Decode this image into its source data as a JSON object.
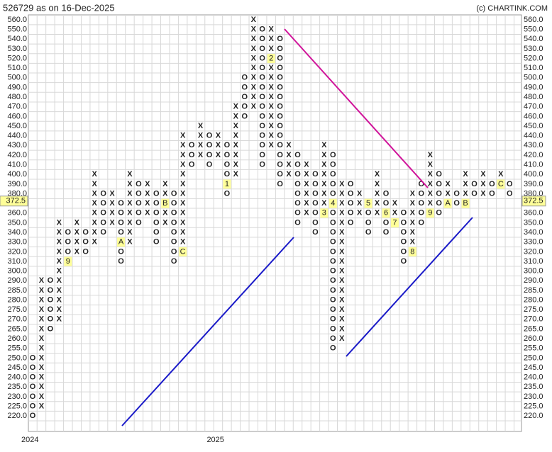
{
  "chart_data": {
    "type": "point-and-figure",
    "title": "526729 as on 16-Dec-2025",
    "credit": "(c) CHARTINK.COM",
    "x_color": "#2e8b2e",
    "o_color": "#e03030",
    "grid": true,
    "current_price": {
      "value": 372.5,
      "label": "372.5"
    },
    "yticks": [
      {
        "value": 560,
        "label": "560.0"
      },
      {
        "value": 550,
        "label": "550.0"
      },
      {
        "value": 540,
        "label": "540.0"
      },
      {
        "value": 530,
        "label": "530.0"
      },
      {
        "value": 520,
        "label": "520.0"
      },
      {
        "value": 510,
        "label": "510.0"
      },
      {
        "value": 500,
        "label": "500.0"
      },
      {
        "value": 490,
        "label": "490.0"
      },
      {
        "value": 480,
        "label": "480.0"
      },
      {
        "value": 470,
        "label": "470.0"
      },
      {
        "value": 460,
        "label": "460.0"
      },
      {
        "value": 450,
        "label": "450.0"
      },
      {
        "value": 440,
        "label": "440.0"
      },
      {
        "value": 430,
        "label": "430.0"
      },
      {
        "value": 420,
        "label": "420.0"
      },
      {
        "value": 410,
        "label": "410.0"
      },
      {
        "value": 400,
        "label": "400.0"
      },
      {
        "value": 390,
        "label": "390.0"
      },
      {
        "value": 380,
        "label": "380.0"
      },
      {
        "value": 370,
        "label": "370.0"
      },
      {
        "value": 360,
        "label": "360.0"
      },
      {
        "value": 350,
        "label": "350.0"
      },
      {
        "value": 340,
        "label": "340.0"
      },
      {
        "value": 330,
        "label": "330.0"
      },
      {
        "value": 320,
        "label": "320.0"
      },
      {
        "value": 310,
        "label": "310.0"
      },
      {
        "value": 300,
        "label": "300.0"
      },
      {
        "value": 290,
        "label": "290.0"
      },
      {
        "value": 285,
        "label": "285.0"
      },
      {
        "value": 280,
        "label": "280.0"
      },
      {
        "value": 275,
        "label": "275.0"
      },
      {
        "value": 270,
        "label": "270.0"
      },
      {
        "value": 265,
        "label": "265.0"
      },
      {
        "value": 260,
        "label": "260.0"
      },
      {
        "value": 255,
        "label": "255.0"
      },
      {
        "value": 250,
        "label": "250.0"
      },
      {
        "value": 245,
        "label": "245.0"
      },
      {
        "value": 240,
        "label": "240.0"
      },
      {
        "value": 235,
        "label": "235.0"
      },
      {
        "value": 230,
        "label": "230.0"
      },
      {
        "value": 225,
        "label": "225.0"
      },
      {
        "value": 220,
        "label": "220.0"
      }
    ],
    "columns": [
      {
        "type": "O",
        "low": 220,
        "high": 250,
        "year": "2024"
      },
      {
        "type": "X",
        "low": 225,
        "high": 295
      },
      {
        "type": "O",
        "low": 265,
        "high": 290
      },
      {
        "type": "X",
        "low": 270,
        "high": 350
      },
      {
        "type": "O",
        "low": 310,
        "high": 340,
        "markers": [
          {
            "price": 310,
            "label": "9"
          }
        ]
      },
      {
        "type": "X",
        "low": 320,
        "high": 350
      },
      {
        "type": "O",
        "low": 320,
        "high": 340
      },
      {
        "type": "X",
        "low": 330,
        "high": 400
      },
      {
        "type": "O",
        "low": 340,
        "high": 380
      },
      {
        "type": "X",
        "low": 350,
        "high": 380
      },
      {
        "type": "O",
        "low": 310,
        "high": 370,
        "markers": [
          {
            "price": 330,
            "label": "A"
          }
        ]
      },
      {
        "type": "X",
        "low": 330,
        "high": 400
      },
      {
        "type": "O",
        "low": 350,
        "high": 390
      },
      {
        "type": "X",
        "low": 360,
        "high": 390
      },
      {
        "type": "O",
        "low": 330,
        "high": 380
      },
      {
        "type": "X",
        "low": 350,
        "high": 390,
        "markers": [
          {
            "price": 370,
            "label": "B"
          }
        ]
      },
      {
        "type": "O",
        "low": 310,
        "high": 380
      },
      {
        "type": "X",
        "low": 320,
        "high": 440,
        "markers": [
          {
            "price": 320,
            "label": "C"
          }
        ]
      },
      {
        "type": "O",
        "low": 410,
        "high": 430
      },
      {
        "type": "X",
        "low": 420,
        "high": 450
      },
      {
        "type": "O",
        "low": 410,
        "high": 440
      },
      {
        "type": "X",
        "low": 420,
        "high": 440,
        "year": "2025"
      },
      {
        "type": "O",
        "low": 380,
        "high": 430,
        "markers": [
          {
            "price": 390,
            "label": "1"
          }
        ]
      },
      {
        "type": "X",
        "low": 400,
        "high": 470
      },
      {
        "type": "O",
        "low": 460,
        "high": 500
      },
      {
        "type": "X",
        "low": 470,
        "high": 560
      },
      {
        "type": "O",
        "low": 410,
        "high": 550
      },
      {
        "type": "X",
        "low": 430,
        "high": 550,
        "markers": [
          {
            "price": 520,
            "label": "2"
          }
        ]
      },
      {
        "type": "O",
        "low": 390,
        "high": 540
      },
      {
        "type": "X",
        "low": 400,
        "high": 430
      },
      {
        "type": "O",
        "low": 350,
        "high": 420
      },
      {
        "type": "X",
        "low": 360,
        "high": 410
      },
      {
        "type": "O",
        "low": 340,
        "high": 400
      },
      {
        "type": "X",
        "low": 360,
        "high": 430,
        "markers": [
          {
            "price": 360,
            "label": "3"
          }
        ]
      },
      {
        "type": "O",
        "low": 255,
        "high": 420,
        "markers": [
          {
            "price": 370,
            "label": "4"
          }
        ]
      },
      {
        "type": "X",
        "low": 260,
        "high": 390
      },
      {
        "type": "O",
        "low": 350,
        "high": 390
      },
      {
        "type": "X",
        "low": 360,
        "high": 380
      },
      {
        "type": "O",
        "low": 340,
        "high": 370,
        "markers": [
          {
            "price": 370,
            "label": "5"
          }
        ]
      },
      {
        "type": "X",
        "low": 360,
        "high": 400
      },
      {
        "type": "O",
        "low": 340,
        "high": 380,
        "markers": [
          {
            "price": 360,
            "label": "6"
          }
        ]
      },
      {
        "type": "X",
        "low": 350,
        "high": 370,
        "markers": [
          {
            "price": 350,
            "label": "7"
          }
        ]
      },
      {
        "type": "O",
        "low": 310,
        "high": 360
      },
      {
        "type": "X",
        "low": 320,
        "high": 380,
        "markers": [
          {
            "price": 320,
            "label": "8"
          }
        ]
      },
      {
        "type": "O",
        "low": 350,
        "high": 390
      },
      {
        "type": "X",
        "low": 360,
        "high": 420,
        "markers": [
          {
            "price": 360,
            "label": "9"
          }
        ]
      },
      {
        "type": "O",
        "low": 360,
        "high": 400
      },
      {
        "type": "X",
        "low": 370,
        "high": 390,
        "markers": [
          {
            "price": 370,
            "label": "A"
          }
        ]
      },
      {
        "type": "O",
        "low": 370,
        "high": 380
      },
      {
        "type": "X",
        "low": 370,
        "high": 400,
        "markers": [
          {
            "price": 370,
            "label": "B"
          }
        ]
      },
      {
        "type": "O",
        "low": 380,
        "high": 390
      },
      {
        "type": "X",
        "low": 380,
        "high": 400
      },
      {
        "type": "O",
        "low": 380,
        "high": 390
      },
      {
        "type": "X",
        "low": 390,
        "high": 400,
        "markers": [
          {
            "price": 390,
            "label": "C"
          }
        ]
      },
      {
        "type": "O",
        "low": 380,
        "high": 390
      }
    ]
  }
}
